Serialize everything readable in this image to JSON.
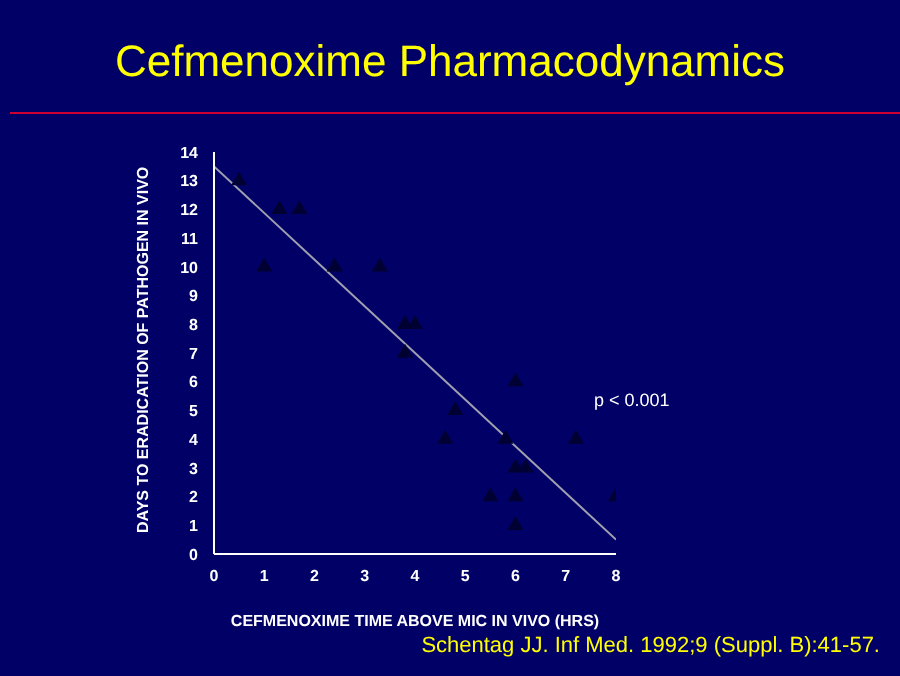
{
  "chart_data": {
    "type": "scatter",
    "title": "Cefmenoxime Pharmacodynamics",
    "xlabel": "CEFMENOXIME TIME ABOVE MIC IN VIVO (HRS)",
    "ylabel": "DAYS TO ERADICATION OF PATHOGEN IN VIVO",
    "annotations": [
      "p < 0.001",
      "Schentag JJ. Inf Med. 1992;9 (Suppl. B):41-57."
    ],
    "x": [
      0.5,
      1,
      1.3,
      1.7,
      2.4,
      3.3,
      3.8,
      4,
      3.8,
      4.6,
      4.8,
      5.5,
      5.8,
      6,
      6,
      6,
      6,
      6.2,
      7.2,
      8
    ],
    "series": [
      {
        "color": "#000033",
        "marker": "triangle",
        "values": [
          13,
          10,
          12,
          12,
          10,
          10,
          8,
          8,
          7,
          4,
          5,
          2,
          4,
          6,
          3,
          2,
          1,
          3,
          4,
          2
        ]
      },
      {
        "type": "line",
        "color": "#a0a0b0",
        "x": [
          0,
          8
        ],
        "values": [
          13.5,
          0.5
        ],
        "marker": "none"
      }
    ],
    "xlim": [
      0,
      8
    ],
    "xticks": [
      0,
      1,
      2,
      3,
      4,
      5,
      6,
      7,
      8
    ],
    "ylim": [
      0,
      14
    ],
    "yticks": [
      0,
      1,
      2,
      3,
      4,
      5,
      6,
      7,
      8,
      9,
      10,
      11,
      12,
      13,
      14
    ],
    "grid": false,
    "legend": false
  }
}
